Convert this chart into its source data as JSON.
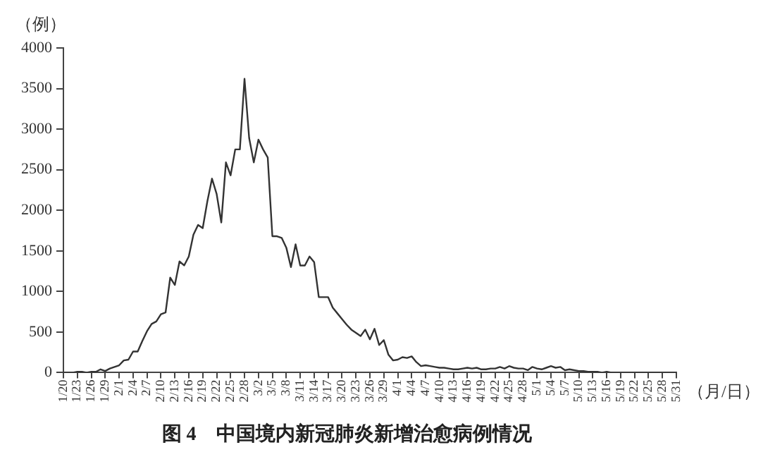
{
  "chart_data": {
    "type": "line",
    "title": "图 4　中国境内新冠肺炎新增治愈病例情况",
    "xlabel": "（月/日）",
    "ylabel": "（例）",
    "categories": [
      "1/20",
      null,
      null,
      "1/23",
      null,
      null,
      "1/26",
      null,
      null,
      "1/29",
      null,
      null,
      "2/1",
      null,
      null,
      "2/4",
      null,
      null,
      "2/7",
      null,
      null,
      "2/10",
      null,
      null,
      "2/13",
      null,
      null,
      "2/16",
      null,
      null,
      "2/19",
      null,
      null,
      "2/22",
      null,
      null,
      "2/25",
      null,
      null,
      "2/28",
      null,
      null,
      "3/2",
      null,
      null,
      "3/5",
      null,
      null,
      "3/8",
      null,
      null,
      "3/11",
      null,
      null,
      "3/14",
      null,
      null,
      "3/17",
      null,
      null,
      "3/20",
      null,
      null,
      "3/23",
      null,
      null,
      "3/26",
      null,
      null,
      "3/29",
      null,
      null,
      "4/1",
      null,
      null,
      "4/4",
      null,
      null,
      "4/7",
      null,
      null,
      "4/10",
      null,
      null,
      "4/13",
      null,
      null,
      "4/16",
      null,
      null,
      "4/19",
      null,
      null,
      "4/22",
      null,
      null,
      "4/25",
      null,
      null,
      "4/28",
      null,
      null,
      "5/1",
      null,
      null,
      "5/4",
      null,
      null,
      "5/7",
      null,
      null,
      "5/10",
      null,
      null,
      "5/13",
      null,
      null,
      "5/16",
      null,
      null,
      "5/19",
      null,
      null,
      "5/22",
      null,
      null,
      "5/25",
      null,
      null,
      "5/28",
      null,
      null,
      "5/31"
    ],
    "series": [
      {
        "color": "#333333",
        "values": [
          0,
          0,
          0,
          10,
          10,
          0,
          10,
          10,
          40,
          20,
          50,
          70,
          90,
          150,
          160,
          260,
          260,
          390,
          510,
          600,
          630,
          720,
          740,
          1170,
          1080,
          1370,
          1320,
          1430,
          1700,
          1820,
          1780,
          2110,
          2390,
          2200,
          1850,
          2590,
          2430,
          2750,
          2750,
          3620,
          2890,
          2590,
          2870,
          2750,
          2650,
          1680,
          1680,
          1660,
          1540,
          1300,
          1580,
          1320,
          1320,
          1430,
          1360,
          930,
          930,
          930,
          800,
          730,
          660,
          590,
          530,
          490,
          450,
          530,
          410,
          540,
          340,
          400,
          220,
          150,
          160,
          190,
          180,
          200,
          130,
          80,
          90,
          80,
          70,
          60,
          60,
          50,
          40,
          40,
          50,
          60,
          50,
          60,
          40,
          40,
          50,
          50,
          70,
          50,
          80,
          60,
          50,
          50,
          30,
          70,
          50,
          40,
          60,
          80,
          60,
          70,
          30,
          40,
          30,
          20,
          20,
          10,
          10,
          10,
          0,
          10,
          0,
          0,
          0,
          0,
          0,
          0,
          0,
          0,
          0,
          0,
          0,
          0,
          0,
          0,
          0
        ]
      }
    ],
    "ylim": [
      0,
      4000
    ],
    "yticks": [
      0,
      500,
      1000,
      1500,
      2000,
      2500,
      3000,
      3500,
      4000
    ],
    "grid": false,
    "legend": false,
    "marker": "none",
    "line_style": "solid"
  }
}
